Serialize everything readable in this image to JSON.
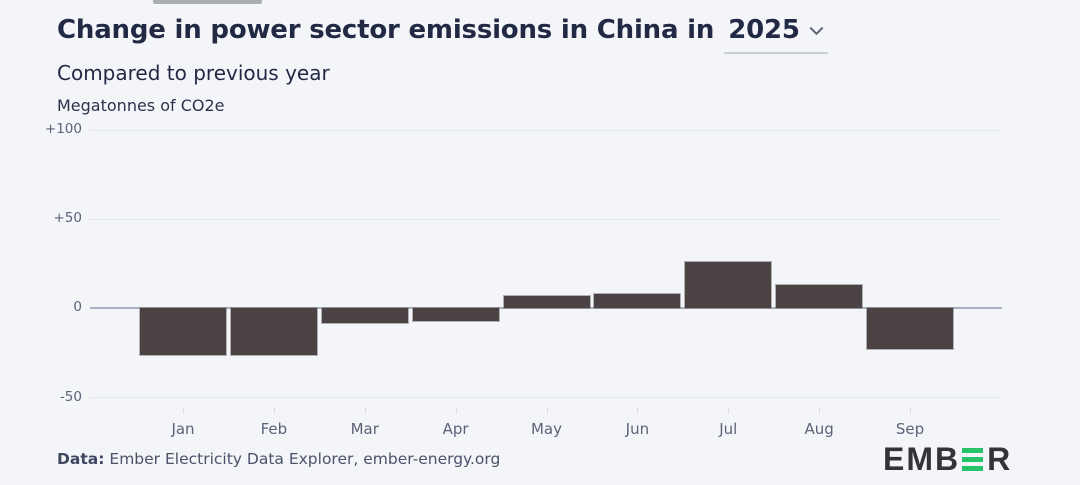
{
  "colors": {
    "background": "#f4f5f9",
    "bar_fill": "#4b4244",
    "title_text": "#222944",
    "axis_text": "#5a6378",
    "gridline": "#e4e6ee",
    "zero_line": "#a9b1c0",
    "logo_green": "#27c368",
    "logo_dark": "#333338"
  },
  "header": {
    "title_prefix": "Change in power sector emissions in China in",
    "year_selector": {
      "value": "2025",
      "icon": "chevron-down-icon"
    },
    "subtitle": "Compared to previous year",
    "unit_label": "Megatonnes of CO2e"
  },
  "chart_data": {
    "type": "bar",
    "title": "Change in power sector emissions in China in 2025",
    "subtitle": "Compared to previous year",
    "ylabel": "Megatonnes of CO2e",
    "categories": [
      "Jan",
      "Feb",
      "Mar",
      "Apr",
      "May",
      "Jun",
      "Jul",
      "Aug",
      "Sep"
    ],
    "values": [
      -26,
      -26,
      -8,
      -7,
      7,
      8,
      26,
      13,
      -23
    ],
    "ylim": [
      -50,
      100
    ],
    "yticks": [
      {
        "value": 100,
        "label": "+100"
      },
      {
        "value": 50,
        "label": "+50"
      },
      {
        "value": 0,
        "label": "0"
      },
      {
        "value": -50,
        "label": "-50"
      }
    ],
    "grid": true,
    "legend": false,
    "bar_color": "#4b4244"
  },
  "footer": {
    "source_label": "Data:",
    "source_text": "Ember Electricity Data Explorer, ember-energy.org"
  },
  "logo": {
    "name": "EMBER",
    "left_text": "EMB",
    "right_text": "R"
  }
}
